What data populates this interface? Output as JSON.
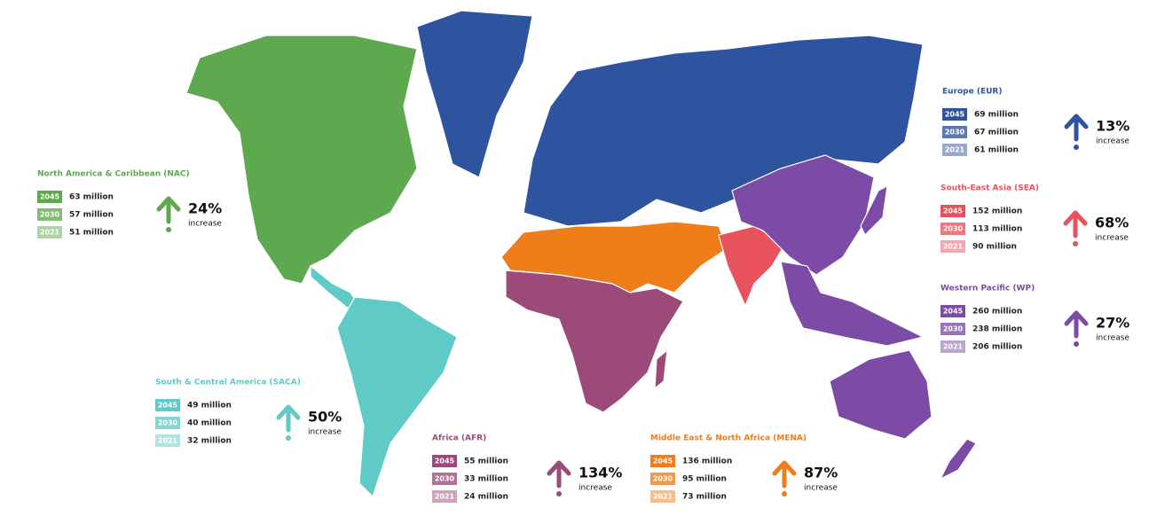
{
  "regions": [
    {
      "name": "North America & Caribbean (NAC)",
      "color": "#5ea84f",
      "rows": [
        {
          "year": "2045",
          "value": "63 million"
        },
        {
          "year": "2030",
          "value": "57 million"
        },
        {
          "year": "2021",
          "value": "51 million"
        }
      ],
      "percent": "24%",
      "note": "increase"
    },
    {
      "name": "South & Central America (SACA)",
      "color": "#5fcac6",
      "rows": [
        {
          "year": "2045",
          "value": "49 million"
        },
        {
          "year": "2030",
          "value": "40 million"
        },
        {
          "year": "2021",
          "value": "32 million"
        }
      ],
      "percent": "50%",
      "note": "increase"
    },
    {
      "name": "Africa (AFR)",
      "color": "#9c4a7a",
      "rows": [
        {
          "year": "2045",
          "value": "55 million"
        },
        {
          "year": "2030",
          "value": "33 million"
        },
        {
          "year": "2021",
          "value": "24 million"
        }
      ],
      "percent": "134%",
      "note": "increase"
    },
    {
      "name": "Middle East & North Africa (MENA)",
      "color": "#ee7d1a",
      "rows": [
        {
          "year": "2045",
          "value": "136 million"
        },
        {
          "year": "2030",
          "value": "95 million"
        },
        {
          "year": "2021",
          "value": "73 million"
        }
      ],
      "percent": "87%",
      "note": "increase"
    },
    {
      "name": "Europe (EUR)",
      "color": "#2e54a0",
      "rows": [
        {
          "year": "2045",
          "value": "69 million"
        },
        {
          "year": "2030",
          "value": "67 million"
        },
        {
          "year": "2021",
          "value": "61 million"
        }
      ],
      "percent": "13%",
      "note": "increase"
    },
    {
      "name": "South-East Asia (SEA)",
      "color": "#e8525c",
      "rows": [
        {
          "year": "2045",
          "value": "152 million"
        },
        {
          "year": "2030",
          "value": "113 million"
        },
        {
          "year": "2021",
          "value": "90 million"
        }
      ],
      "percent": "68%",
      "note": "increase"
    },
    {
      "name": "Western Pacific (WP)",
      "color": "#7b4ba6",
      "rows": [
        {
          "year": "2045",
          "value": "260 million"
        },
        {
          "year": "2030",
          "value": "238 million"
        },
        {
          "year": "2021",
          "value": "206 million"
        }
      ],
      "percent": "27%",
      "note": "increase"
    }
  ]
}
